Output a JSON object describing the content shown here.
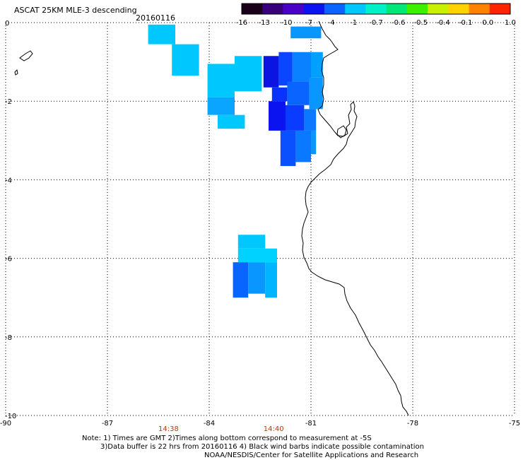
{
  "header": {
    "title": "ASCAT 25KM MLE-3 descending",
    "date": "20160116"
  },
  "colorbar": {
    "labels": [
      "-16",
      "-13",
      "-10",
      "-7",
      "-4",
      "-1",
      "-0.7",
      "-0.6",
      "-0.5",
      "-0.4",
      "-0.1",
      "0.0",
      "1.0"
    ],
    "colors": [
      "#1a0018",
      "#38007a",
      "#4b00c8",
      "#0b14f0",
      "#0a64ff",
      "#00c8ff",
      "#00f0c8",
      "#00e878",
      "#3cf000",
      "#c8f000",
      "#ffd200",
      "#ff8200",
      "#ff2400"
    ]
  },
  "axes": {
    "x_ticks": [
      "-90",
      "-87",
      "-84",
      "-81",
      "-78",
      "-75"
    ],
    "y_ticks": [
      "0",
      "-2",
      "-4",
      "-6",
      "-8",
      "-10"
    ],
    "xlim": [
      -90,
      -75
    ],
    "ylim": [
      -10,
      0
    ]
  },
  "time_labels": [
    {
      "text": "14:38",
      "lon": -85.2
    },
    {
      "text": "14:40",
      "lon": -82.1
    }
  ],
  "time_color": "#c83200",
  "notes": {
    "line1": "Note: 1) Times are GMT 2)Times along bottom correspond to measurement at -5S",
    "line2": "3)Data buffer is 22 hrs from 20160116 4) Black wind barbs indicate possible contamination",
    "line3": "NOAA/NESDIS/Center for Satellite Applications and Research"
  },
  "data_cells": [
    {
      "lon0": -85.8,
      "lon1": -85.0,
      "lat0": -0.05,
      "lat1": -0.55,
      "color": "#00c8ff"
    },
    {
      "lon0": -85.1,
      "lon1": -84.3,
      "lat0": -0.55,
      "lat1": -1.35,
      "color": "#00c8ff"
    },
    {
      "lon0": -84.05,
      "lon1": -83.25,
      "lat0": -1.05,
      "lat1": -1.9,
      "color": "#00c8ff"
    },
    {
      "lon0": -83.25,
      "lon1": -82.45,
      "lat0": -0.85,
      "lat1": -1.75,
      "color": "#00c8ff"
    },
    {
      "lon0": -84.05,
      "lon1": -83.25,
      "lat0": -1.9,
      "lat1": -2.35,
      "color": "#0aa5ff"
    },
    {
      "lon0": -83.75,
      "lon1": -82.95,
      "lat0": -2.35,
      "lat1": -2.7,
      "color": "#00c8ff"
    },
    {
      "lon0": -82.4,
      "lon1": -81.95,
      "lat0": -0.85,
      "lat1": -1.65,
      "color": "#0b14e0"
    },
    {
      "lon0": -81.95,
      "lon1": -81.55,
      "lat0": -0.75,
      "lat1": -1.6,
      "color": "#0a46ff"
    },
    {
      "lon0": -81.55,
      "lon1": -81.0,
      "lat0": -0.75,
      "lat1": -1.5,
      "color": "#0a82ff"
    },
    {
      "lon0": -81.0,
      "lon1": -80.65,
      "lat0": -0.75,
      "lat1": -1.4,
      "color": "#00a0ff"
    },
    {
      "lon0": -82.15,
      "lon1": -81.7,
      "lat0": -1.65,
      "lat1": -2.0,
      "color": "#0a32ff"
    },
    {
      "lon0": -81.7,
      "lon1": -81.05,
      "lat0": -1.5,
      "lat1": -2.1,
      "color": "#0a64ff"
    },
    {
      "lon0": -81.05,
      "lon1": -80.65,
      "lat0": -1.4,
      "lat1": -2.2,
      "color": "#0a96ff"
    },
    {
      "lon0": -82.25,
      "lon1": -81.75,
      "lat0": -2.0,
      "lat1": -2.75,
      "color": "#0b14f0"
    },
    {
      "lon0": -81.75,
      "lon1": -81.2,
      "lat0": -2.1,
      "lat1": -2.75,
      "color": "#0a3cff"
    },
    {
      "lon0": -81.2,
      "lon1": -80.85,
      "lat0": -2.2,
      "lat1": -2.75,
      "color": "#0a78ff"
    },
    {
      "lon0": -81.9,
      "lon1": -81.45,
      "lat0": -2.75,
      "lat1": -3.65,
      "color": "#0a50ff"
    },
    {
      "lon0": -81.45,
      "lon1": -81.0,
      "lat0": -2.75,
      "lat1": -3.55,
      "color": "#0a78ff"
    },
    {
      "lon0": -81.0,
      "lon1": -80.85,
      "lat0": -2.75,
      "lat1": -3.35,
      "color": "#0a96ff"
    },
    {
      "lon0": -81.6,
      "lon1": -80.7,
      "lat0": -0.1,
      "lat1": -0.4,
      "color": "#0a96ff"
    },
    {
      "lon0": -83.15,
      "lon1": -82.35,
      "lat0": -5.4,
      "lat1": -5.75,
      "color": "#00c8ff"
    },
    {
      "lon0": -83.15,
      "lon1": -82.0,
      "lat0": -5.75,
      "lat1": -6.1,
      "color": "#00d2ff"
    },
    {
      "lon0": -83.3,
      "lon1": -82.85,
      "lat0": -6.1,
      "lat1": -7.0,
      "color": "#0a64ff"
    },
    {
      "lon0": -82.85,
      "lon1": -82.35,
      "lat0": -6.1,
      "lat1": -6.9,
      "color": "#0a96ff"
    },
    {
      "lon0": -82.35,
      "lon1": -82.0,
      "lat0": -6.1,
      "lat1": -7.0,
      "color": "#00b4ff"
    }
  ]
}
